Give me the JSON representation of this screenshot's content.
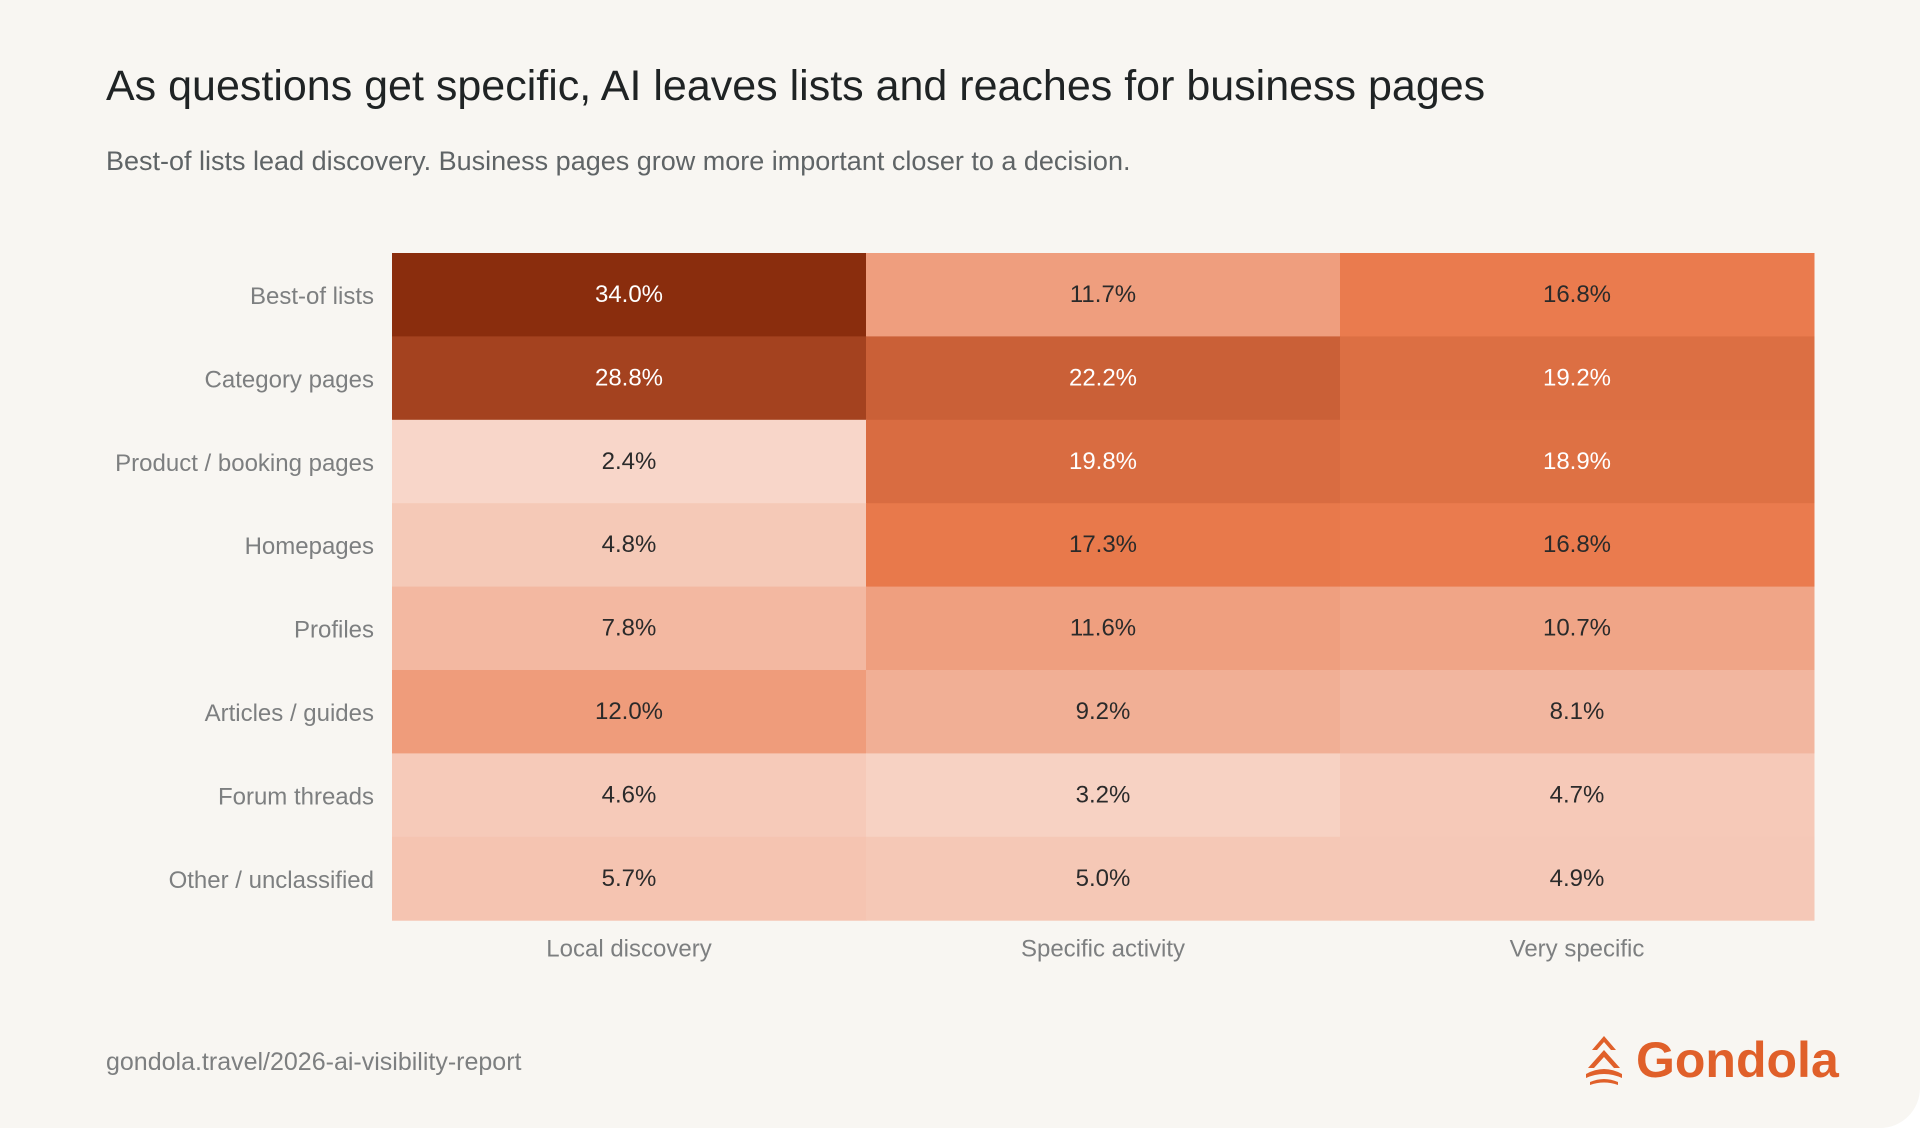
{
  "header": {
    "title": "As questions get specific, AI leaves lists and reaches for business pages",
    "subtitle": "Best-of lists lead discovery. Business pages grow more important closer to a decision."
  },
  "footer": {
    "source": "gondola.travel/2026-ai-visibility-report",
    "brand_name": "Gondola",
    "brand_color": "#e0602a",
    "brand_icon": "gondola-logo-icon"
  },
  "chart_data": {
    "type": "heatmap",
    "title": "As questions get specific, AI leaves lists and reaches for business pages",
    "subtitle": "Best-of lists lead discovery. Business pages grow more important closer to a decision.",
    "columns": [
      "Local discovery",
      "Specific activity",
      "Very specific"
    ],
    "rows": [
      "Best-of lists",
      "Category pages",
      "Product / booking pages",
      "Homepages",
      "Profiles",
      "Articles / guides",
      "Forum threads",
      "Other / unclassified"
    ],
    "values": [
      [
        34.0,
        11.7,
        16.8
      ],
      [
        28.8,
        22.2,
        19.2
      ],
      [
        2.4,
        19.8,
        18.9
      ],
      [
        4.8,
        17.3,
        16.8
      ],
      [
        7.8,
        11.6,
        10.7
      ],
      [
        12.0,
        9.2,
        8.1
      ],
      [
        4.6,
        3.2,
        4.7
      ],
      [
        5.7,
        5.0,
        4.9
      ]
    ],
    "value_labels": [
      [
        "34.0%",
        "11.7%",
        "16.8%"
      ],
      [
        "28.8%",
        "22.2%",
        "19.2%"
      ],
      [
        "2.4%",
        "19.8%",
        "18.9%"
      ],
      [
        "4.8%",
        "17.3%",
        "16.8%"
      ],
      [
        "7.8%",
        "11.6%",
        "10.7%"
      ],
      [
        "12.0%",
        "9.2%",
        "8.1%"
      ],
      [
        "4.6%",
        "3.2%",
        "4.7%"
      ],
      [
        "5.7%",
        "5.0%",
        "4.9%"
      ]
    ],
    "unit": "%",
    "color_scale": [
      "#fae4db",
      "#f2b49c",
      "#ea7a4c",
      "#b5502a",
      "#8a2d0d"
    ],
    "text_color_dark": "#2a2a2a",
    "text_color_light": "#ffffff"
  }
}
